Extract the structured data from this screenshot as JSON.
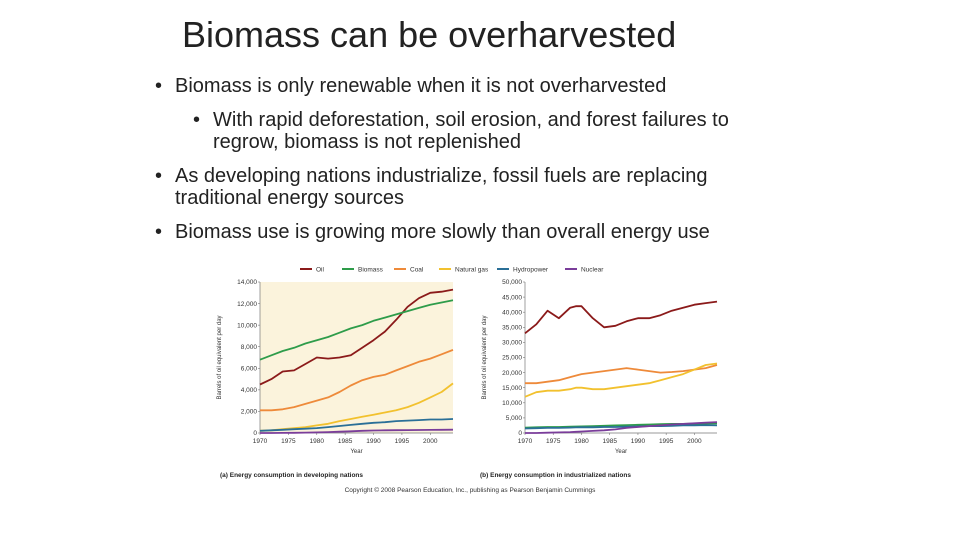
{
  "slide": {
    "title": "Biomass can be overharvested",
    "bullets": [
      {
        "text": "Biomass is only renewable when it is not overharvested",
        "level": 1
      },
      {
        "text": "With rapid deforestation, soil erosion, and forest failures to regrow, biomass is not replenished",
        "level": 2
      },
      {
        "text": "As developing nations industrialize, fossil fuels are replacing traditional energy sources",
        "level": 1
      },
      {
        "text": "Biomass use is growing more slowly than overall energy use",
        "level": 1
      }
    ]
  },
  "legend": [
    {
      "name": "Oil",
      "color": "#8b1a1a"
    },
    {
      "name": "Biomass",
      "color": "#2e9c4a"
    },
    {
      "name": "Coal",
      "color": "#ee8a3a"
    },
    {
      "name": "Natural gas",
      "color": "#f2c12e"
    },
    {
      "name": "Hydropower",
      "color": "#2a6f97"
    },
    {
      "name": "Nuclear",
      "color": "#7a3d9a"
    }
  ],
  "copyright": "Copyright © 2008 Pearson Education, Inc., publishing as Pearson Benjamin Cummings",
  "chart_data": [
    {
      "type": "line",
      "caption": "(a) Energy consumption in developing nations",
      "xlabel": "Year",
      "ylabel": "Barrels of oil equivalent per day",
      "xlim": [
        1970,
        2004
      ],
      "ylim": [
        0,
        14000
      ],
      "xticks": [
        "1970",
        "1975",
        "1980",
        "1985",
        "1990",
        "1995",
        "2000"
      ],
      "yticks": [
        "0",
        "2,000",
        "4,000",
        "6,000",
        "8,000",
        "10,000",
        "12,000",
        "14,000"
      ],
      "ytick_values": [
        0,
        2000,
        4000,
        6000,
        8000,
        10000,
        12000,
        14000
      ],
      "x": [
        1970,
        1972,
        1974,
        1976,
        1978,
        1980,
        1982,
        1984,
        1986,
        1988,
        1990,
        1992,
        1994,
        1996,
        1998,
        2000,
        2002,
        2004
      ],
      "series": [
        {
          "name": "Oil",
          "values": [
            4500,
            5000,
            5700,
            5800,
            6400,
            7000,
            6900,
            7000,
            7200,
            7900,
            8600,
            9400,
            10500,
            11700,
            12500,
            13000,
            13100,
            13300
          ]
        },
        {
          "name": "Biomass",
          "values": [
            6800,
            7200,
            7600,
            7900,
            8300,
            8600,
            8900,
            9300,
            9700,
            10000,
            10400,
            10700,
            11000,
            11300,
            11600,
            11900,
            12100,
            12300
          ]
        },
        {
          "name": "Coal",
          "values": [
            2100,
            2100,
            2200,
            2400,
            2700,
            3000,
            3300,
            3800,
            4400,
            4900,
            5200,
            5400,
            5800,
            6200,
            6600,
            6900,
            7300,
            7700
          ]
        },
        {
          "name": "Natural gas",
          "values": [
            200,
            250,
            350,
            450,
            550,
            700,
            850,
            1100,
            1300,
            1500,
            1700,
            1900,
            2100,
            2400,
            2800,
            3300,
            3800,
            4600
          ]
        },
        {
          "name": "Hydropower",
          "values": [
            200,
            250,
            300,
            350,
            400,
            450,
            550,
            650,
            750,
            850,
            950,
            1000,
            1100,
            1150,
            1200,
            1250,
            1250,
            1300
          ]
        },
        {
          "name": "Nuclear",
          "values": [
            0,
            0,
            10,
            20,
            40,
            60,
            80,
            120,
            160,
            200,
            230,
            250,
            260,
            270,
            280,
            290,
            300,
            310
          ]
        }
      ]
    },
    {
      "type": "line",
      "caption": "(b) Energy consumption in industrialized nations",
      "xlabel": "Year",
      "ylabel": "Barrels of oil equivalent per day",
      "xlim": [
        1970,
        2004
      ],
      "ylim": [
        0,
        50000
      ],
      "xticks": [
        "1970",
        "1975",
        "1980",
        "1985",
        "1990",
        "1995",
        "2000"
      ],
      "yticks": [
        "0",
        "5,000",
        "10,000",
        "15,000",
        "20,000",
        "25,000",
        "30,000",
        "35,000",
        "40,000",
        "45,000",
        "50,000"
      ],
      "ytick_values": [
        0,
        5000,
        10000,
        15000,
        20000,
        25000,
        30000,
        35000,
        40000,
        45000,
        50000
      ],
      "x": [
        1970,
        1972,
        1974,
        1976,
        1978,
        1979,
        1980,
        1982,
        1984,
        1986,
        1988,
        1990,
        1992,
        1994,
        1996,
        1998,
        2000,
        2002,
        2004
      ],
      "series": [
        {
          "name": "Oil",
          "values": [
            33000,
            36000,
            40500,
            38000,
            41500,
            42000,
            42000,
            38000,
            35000,
            35500,
            37000,
            38000,
            38000,
            39000,
            40500,
            41500,
            42500,
            43000,
            43500
          ]
        },
        {
          "name": "Coal",
          "values": [
            16500,
            16500,
            17000,
            17500,
            18500,
            19000,
            19500,
            20000,
            20500,
            21000,
            21500,
            21000,
            20500,
            20000,
            20200,
            20500,
            21000,
            21500,
            22500
          ]
        },
        {
          "name": "Natural gas",
          "values": [
            12000,
            13500,
            14000,
            14000,
            14500,
            15000,
            15000,
            14500,
            14500,
            15000,
            15500,
            16000,
            16500,
            17500,
            18500,
            19500,
            21000,
            22500,
            23000
          ]
        },
        {
          "name": "Biomass",
          "values": [
            1800,
            1900,
            2000,
            2000,
            2100,
            2150,
            2200,
            2300,
            2400,
            2500,
            2600,
            2700,
            2800,
            2900,
            3000,
            3000,
            3100,
            3100,
            3200
          ]
        },
        {
          "name": "Hydropower",
          "values": [
            1500,
            1600,
            1700,
            1700,
            1800,
            1850,
            1900,
            1900,
            2000,
            2000,
            2100,
            2200,
            2300,
            2300,
            2400,
            2500,
            2500,
            2600,
            2500
          ]
        },
        {
          "name": "Nuclear",
          "values": [
            0,
            0,
            100,
            200,
            300,
            400,
            500,
            700,
            900,
            1200,
            1700,
            2000,
            2300,
            2500,
            2800,
            3000,
            3200,
            3400,
            3600
          ]
        }
      ]
    }
  ]
}
